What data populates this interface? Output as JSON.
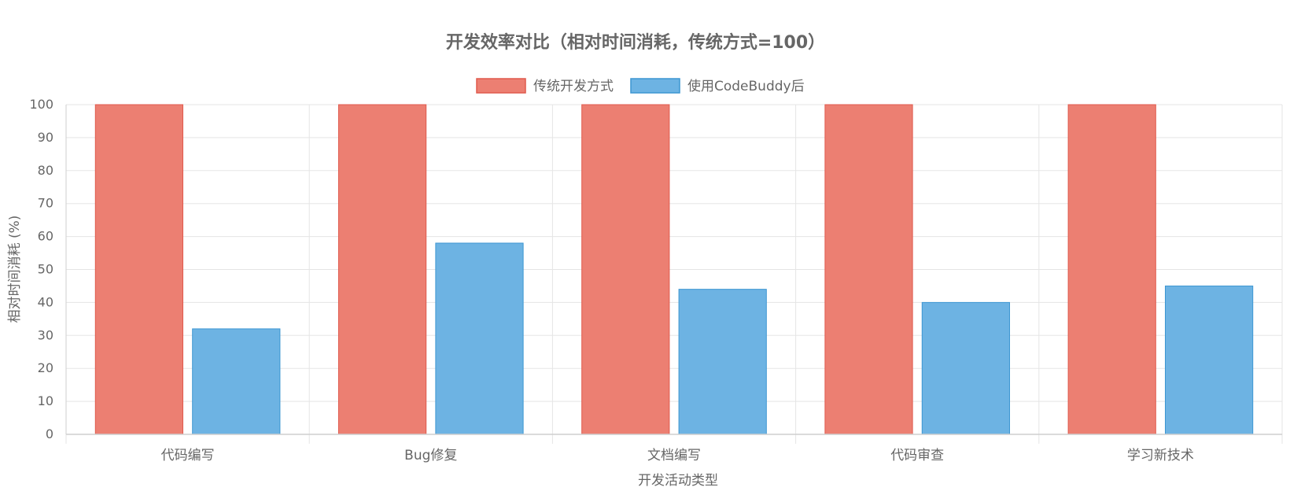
{
  "chart_data": {
    "type": "bar",
    "title": "开发效率对比（相对时间消耗，传统方式=100）",
    "xlabel": "开发活动类型",
    "ylabel": "相对时间消耗 (%)",
    "categories": [
      "代码编写",
      "Bug修复",
      "文档编写",
      "代码审查",
      "学习新技术"
    ],
    "series": [
      {
        "name": "传统开发方式",
        "values": [
          100,
          100,
          100,
          100,
          100
        ],
        "fill": "#ec7f72",
        "stroke": "#e05a4d"
      },
      {
        "name": "使用CodeBuddy后",
        "values": [
          32,
          58,
          44,
          40,
          45
        ],
        "fill": "#6db3e3",
        "stroke": "#3d96d2"
      }
    ],
    "ylim": [
      0,
      100
    ],
    "yticks": [
      0,
      10,
      20,
      30,
      40,
      50,
      60,
      70,
      80,
      90,
      100
    ],
    "grid": true,
    "legend_position": "top-center"
  }
}
